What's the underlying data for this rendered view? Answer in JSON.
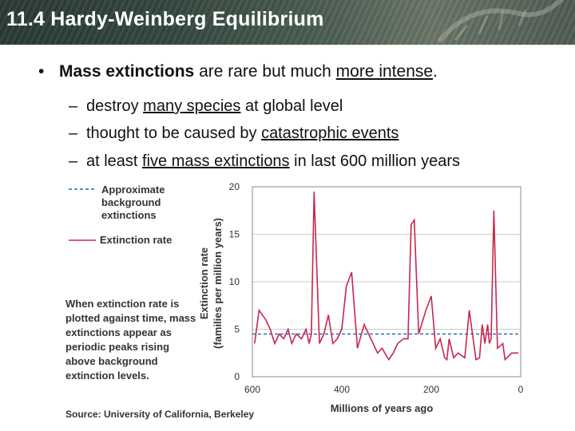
{
  "header": {
    "title": "11.4 Hardy-Weinberg Equilibrium"
  },
  "bullet": {
    "t1": "Mass extinctions",
    "t2": " are rare but much ",
    "t3": "more intense",
    "t4": "."
  },
  "subs": [
    {
      "a": "destroy ",
      "u": "many species",
      "b": " at global level"
    },
    {
      "a": "thought to be caused by ",
      "u": "catastrophic events",
      "b": ""
    },
    {
      "a": "at least ",
      "u": "five mass extinctions",
      "b": " in last 600 million years"
    }
  ],
  "legend": {
    "background": "Approximate background extinctions",
    "rate": "Extinction rate"
  },
  "caption": "When extinction rate is plotted against time, mass extinctions appear as periodic peaks rising above background extinction levels.",
  "source": "Source: University of California, Berkeley",
  "colors": {
    "rate_line": "#c8264e",
    "background_line": "#2b6cb0"
  },
  "chart_data": {
    "type": "line",
    "xlabel": "Millions of years ago",
    "ylabel": "Extinction rate (families per million years)",
    "xlim": [
      600,
      0
    ],
    "ylim": [
      0,
      20
    ],
    "xticks": [
      600,
      400,
      200,
      0
    ],
    "yticks": [
      0,
      5,
      10,
      15,
      20
    ],
    "background_level": 4.5,
    "series": [
      {
        "name": "Extinction rate",
        "x": [
          595,
          585,
          570,
          560,
          550,
          540,
          530,
          520,
          512,
          502,
          490,
          480,
          473,
          468,
          462,
          450,
          440,
          430,
          420,
          410,
          400,
          390,
          378,
          365,
          350,
          335,
          320,
          310,
          295,
          285,
          275,
          262,
          252,
          245,
          238,
          228,
          212,
          200,
          190,
          180,
          170,
          165,
          160,
          150,
          140,
          125,
          115,
          100,
          92,
          86,
          80,
          74,
          70,
          66,
          60,
          52,
          40,
          35,
          20,
          5
        ],
        "y": [
          3.5,
          7,
          6,
          5,
          3.5,
          4.5,
          4,
          5,
          3.5,
          4.5,
          4,
          5,
          3.5,
          4.5,
          19.5,
          3.5,
          4.5,
          6.5,
          3.5,
          4,
          5,
          9.5,
          11,
          3,
          5.5,
          4,
          2.5,
          3,
          1.8,
          2.5,
          3.5,
          4,
          4,
          16,
          16.5,
          4.5,
          7,
          8.5,
          3,
          4,
          2,
          1.8,
          4,
          2,
          2.5,
          2,
          7,
          1.8,
          2,
          5.5,
          3.5,
          5.5,
          3.5,
          4,
          17.5,
          3,
          3.5,
          1.8,
          2.5,
          2.5
        ]
      }
    ]
  }
}
